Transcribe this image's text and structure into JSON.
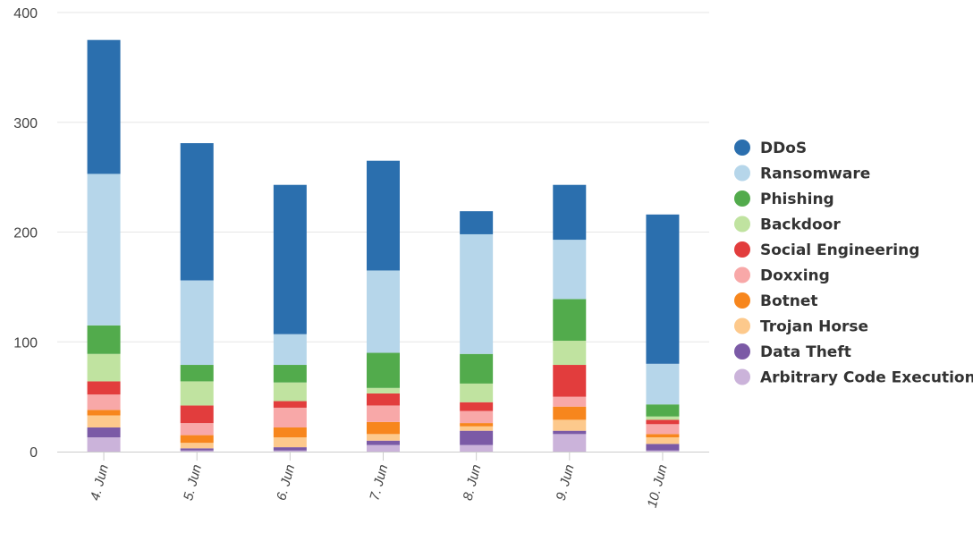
{
  "chart_data": {
    "type": "bar",
    "stacked": true,
    "categories": [
      "4. Jun",
      "5. Jun",
      "6. Jun",
      "7. Jun",
      "8. Jun",
      "9. Jun",
      "10. Jun"
    ],
    "ylim": [
      0,
      400
    ],
    "yticks": [
      0,
      100,
      200,
      300,
      400
    ],
    "grid": true,
    "legend_position": "right",
    "series": [
      {
        "name": "Arbitrary Code Execution",
        "color": "#cbb3da",
        "values": [
          13,
          1,
          1,
          6,
          6,
          16,
          1
        ]
      },
      {
        "name": "Data Theft",
        "color": "#7b5aa6",
        "values": [
          9,
          2,
          3,
          4,
          13,
          3,
          6
        ]
      },
      {
        "name": "Trojan Horse",
        "color": "#fdc98c",
        "values": [
          11,
          5,
          9,
          6,
          4,
          10,
          6
        ]
      },
      {
        "name": "Botnet",
        "color": "#f7861d",
        "values": [
          5,
          7,
          9,
          11,
          3,
          12,
          3
        ]
      },
      {
        "name": "Doxxing",
        "color": "#f8a8a8",
        "values": [
          14,
          11,
          18,
          15,
          11,
          9,
          9
        ]
      },
      {
        "name": "Social Engineering",
        "color": "#e23d3d",
        "values": [
          12,
          16,
          6,
          11,
          8,
          29,
          4
        ]
      },
      {
        "name": "Backdoor",
        "color": "#c0e3a0",
        "values": [
          25,
          22,
          17,
          5,
          17,
          22,
          3
        ]
      },
      {
        "name": "Phishing",
        "color": "#52ab4c",
        "values": [
          26,
          15,
          16,
          32,
          27,
          38,
          11
        ]
      },
      {
        "name": "Ransomware",
        "color": "#b6d6ea",
        "values": [
          138,
          77,
          28,
          75,
          109,
          54,
          37
        ]
      },
      {
        "name": "DDoS",
        "color": "#2b6fae",
        "values": [
          122,
          125,
          136,
          100,
          21,
          50,
          136
        ]
      }
    ],
    "legend_order": [
      "DDoS",
      "Ransomware",
      "Phishing",
      "Backdoor",
      "Social Engineering",
      "Doxxing",
      "Botnet",
      "Trojan Horse",
      "Data Theft",
      "Arbitrary Code Execution"
    ]
  }
}
